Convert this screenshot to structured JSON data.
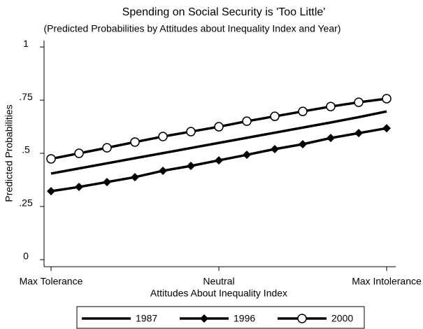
{
  "chart_data": {
    "type": "line",
    "title": "Spending on Social  Security is 'Too Little'",
    "subtitle": "(Predicted Probabilities by Attitudes about Inequality Index and Year)",
    "x_label": "Attitudes About Inequality Index",
    "y_label": "Predicted Probabilities",
    "x": [
      0,
      1,
      2,
      3,
      4,
      5,
      6,
      7,
      8,
      9,
      10,
      11,
      12
    ],
    "xlim": [
      -0.25,
      12.325
    ],
    "xticks": [
      {
        "value": 0,
        "label": "Max Tolerance"
      },
      {
        "value": 6,
        "label": "Neutral"
      },
      {
        "value": 12,
        "label": "Max Intolerance"
      }
    ],
    "ylim": [
      -0.033,
      1.03
    ],
    "yticks": [
      0,
      {
        "value": 0.25,
        "label": ".25"
      },
      {
        "value": 0.5,
        "label": ".5"
      },
      {
        "value": 0.75,
        "label": ".75"
      },
      1
    ],
    "series": [
      {
        "name": "1987",
        "color": "#000000",
        "marker": "none",
        "values": [
          0.405,
          0.429,
          0.453,
          0.477,
          0.501,
          0.525,
          0.549,
          0.573,
          0.597,
          0.621,
          0.645,
          0.67,
          0.697
        ]
      },
      {
        "name": "1996",
        "color": "#000000",
        "marker": "diamond",
        "values": [
          0.322,
          0.342,
          0.365,
          0.388,
          0.418,
          0.441,
          0.467,
          0.493,
          0.52,
          0.543,
          0.572,
          0.595,
          0.618
        ]
      },
      {
        "name": "2000",
        "color": "#000000",
        "marker": "circle",
        "values": [
          0.474,
          0.5,
          0.526,
          0.553,
          0.579,
          0.602,
          0.625,
          0.651,
          0.674,
          0.697,
          0.72,
          0.74,
          0.757
        ]
      }
    ]
  }
}
